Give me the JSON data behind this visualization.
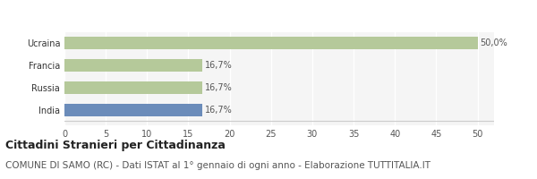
{
  "categories": [
    "India",
    "Russia",
    "Francia",
    "Ucraina"
  ],
  "values": [
    16.7,
    16.7,
    16.7,
    50.0
  ],
  "bar_colors": [
    "#6b8cba",
    "#b5c99a",
    "#b5c99a",
    "#b5c99a"
  ],
  "labels": [
    "16,7%",
    "16,7%",
    "16,7%",
    "50,0%"
  ],
  "xlim": [
    0,
    52
  ],
  "xticks": [
    0,
    5,
    10,
    15,
    20,
    25,
    30,
    35,
    40,
    45,
    50
  ],
  "legend_europa_color": "#b5c99a",
  "legend_asia_color": "#6b8cba",
  "title": "Cittadini Stranieri per Cittadinanza",
  "subtitle": "COMUNE DI SAMO (RC) - Dati ISTAT al 1° gennaio di ogni anno - Elaborazione TUTTITALIA.IT",
  "bg_color": "#f5f5f5",
  "grid_color": "#ffffff",
  "bar_height": 0.55,
  "title_fontsize": 9,
  "subtitle_fontsize": 7.5,
  "label_fontsize": 7,
  "tick_fontsize": 7,
  "legend_fontsize": 8
}
